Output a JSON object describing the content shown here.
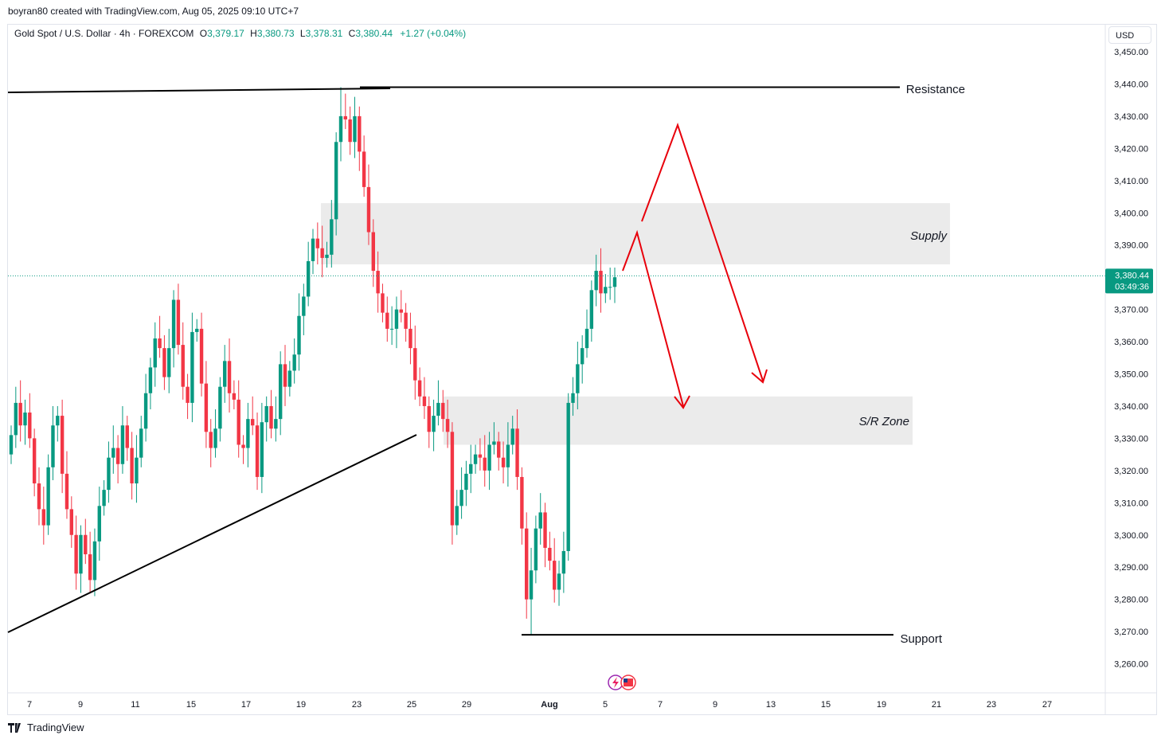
{
  "header": {
    "author_line": "boyran80 created with TradingView.com, Aug 05, 2025 09:10 UTC+7"
  },
  "legend": {
    "symbol": "Gold Spot / U.S. Dollar · 4h · FOREXCOM",
    "open_label": "O",
    "open": "3,379.17",
    "high_label": "H",
    "high": "3,380.73",
    "low_label": "L",
    "low": "3,378.31",
    "close_label": "C",
    "close": "3,380.44",
    "change": "+1.27 (+0.04%)"
  },
  "axis": {
    "currency": "USD",
    "price_ticks": [
      "3,450.00",
      "3,440.00",
      "3,430.00",
      "3,420.00",
      "3,410.00",
      "3,400.00",
      "3,390.00",
      "3,380.00",
      "3,370.00",
      "3,360.00",
      "3,350.00",
      "3,340.00",
      "3,330.00",
      "3,320.00",
      "3,310.00",
      "3,300.00",
      "3,290.00",
      "3,280.00",
      "3,270.00",
      "3,260.00"
    ],
    "date_ticks": [
      "7",
      "9",
      "11",
      "15",
      "17",
      "19",
      "23",
      "25",
      "29",
      "Aug",
      "5",
      "7",
      "9",
      "13",
      "15",
      "19",
      "21",
      "23",
      "27"
    ]
  },
  "last_price": {
    "value": "3,380.44",
    "countdown": "03:49:36"
  },
  "footer": {
    "brand": "TradingView"
  },
  "colors": {
    "up": "#089981",
    "down": "#f23645",
    "projection": "#e8000b",
    "zone": "#ebebeb",
    "line": "#000000",
    "axis_text": "#131722"
  },
  "chart_data": {
    "type": "candlestick",
    "title": "Gold Spot / U.S. Dollar · 4h · FOREXCOM",
    "ylim": [
      3255,
      3458
    ],
    "x_ticks": [
      "7",
      "9",
      "11",
      "15",
      "17",
      "19",
      "23",
      "25",
      "29",
      "Aug",
      "5",
      "7",
      "9",
      "13",
      "15",
      "19",
      "21",
      "23",
      "27"
    ],
    "closes": [
      3331,
      3341,
      3334,
      3338,
      3330,
      3316,
      3308,
      3303,
      3321,
      3334,
      3337,
      3319,
      3308,
      3300,
      3288,
      3300,
      3294,
      3286,
      3298,
      3309,
      3314,
      3324,
      3327,
      3322,
      3334,
      3327,
      3316,
      3324,
      3333,
      3344,
      3352,
      3361,
      3358,
      3349,
      3358,
      3373,
      3359,
      3346,
      3341,
      3363,
      3364,
      3347,
      3332,
      3327,
      3333,
      3346,
      3354,
      3344,
      3342,
      3328,
      3327,
      3336,
      3334,
      3318,
      3335,
      3340,
      3333,
      3336,
      3353,
      3346,
      3351,
      3356,
      3368,
      3374,
      3385,
      3392,
      3389,
      3386,
      3387,
      3398,
      3422,
      3430,
      3429,
      3422,
      3430,
      3419,
      3408,
      3394,
      3382,
      3375,
      3369,
      3364,
      3364,
      3370,
      3369,
      3364,
      3358,
      3348,
      3343,
      3340,
      3332,
      3337,
      3341,
      3336,
      3332,
      3303,
      3309,
      3314,
      3319,
      3322,
      3325,
      3324,
      3320,
      3328,
      3329,
      3324,
      3321,
      3328,
      3333,
      3318,
      3302,
      3280,
      3289,
      3302,
      3307,
      3296,
      3292,
      3283,
      3288,
      3295,
      3341,
      3344,
      3353,
      3358,
      3364,
      3376,
      3382,
      3375,
      3377,
      3377,
      3380
    ],
    "support": 3269,
    "resistance": 3439,
    "supply_zone": [
      3384,
      3403
    ],
    "sr_zone": [
      3328,
      3343
    ],
    "labels": {
      "resistance": "Resistance",
      "supply": "Supply",
      "sr_zone": "S/R Zone",
      "support": "Support"
    }
  }
}
